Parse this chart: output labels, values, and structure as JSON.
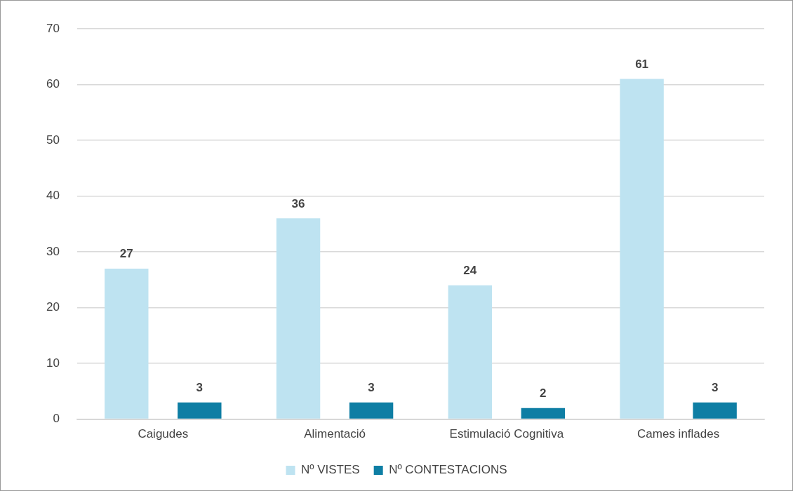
{
  "chart_data": {
    "type": "bar",
    "categories": [
      "Caigudes",
      "Alimentació",
      "Estimulació Cognitiva",
      "Cames inflades"
    ],
    "series": [
      {
        "name": "Nº VISTES",
        "color": "#bee3f1",
        "values": [
          27,
          36,
          24,
          61
        ]
      },
      {
        "name": "Nº CONTESTACIONS",
        "color": "#0e7ea4",
        "values": [
          3,
          3,
          2,
          3
        ]
      }
    ],
    "ylim": [
      0,
      70
    ],
    "yticks": [
      0,
      10,
      20,
      30,
      40,
      50,
      60,
      70
    ],
    "grid": "y",
    "legend": "bottom",
    "data_labels": true
  }
}
